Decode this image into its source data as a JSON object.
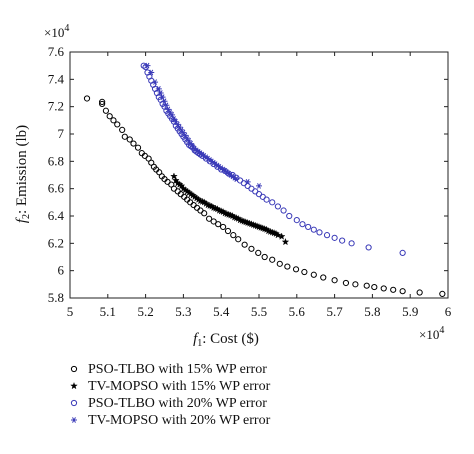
{
  "chart_data": {
    "type": "scatter",
    "xlabel_italic": "f",
    "xlabel_sub": "1",
    "xlabel_rest": ": Cost ($)",
    "ylabel_italic": "f",
    "ylabel_sub": "2",
    "ylabel_rest": ": Emission (lb)",
    "x_multiplier_base": "×10",
    "x_multiplier_exp": "4",
    "y_multiplier_base": "×10",
    "y_multiplier_exp": "4",
    "xlim": [
      5,
      6
    ],
    "ylim": [
      5.8,
      7.6
    ],
    "x_tick_labels": [
      "5",
      "5.1",
      "5.2",
      "5.3",
      "5.4",
      "5.5",
      "5.6",
      "5.7",
      "5.8",
      "5.9",
      "6"
    ],
    "x_ticks": [
      5,
      5.1,
      5.2,
      5.3,
      5.4,
      5.5,
      5.6,
      5.7,
      5.8,
      5.9,
      6
    ],
    "y_tick_labels": [
      "5.8",
      "6",
      "6.2",
      "6.4",
      "6.6",
      "6.8",
      "7",
      "7.2",
      "7.4",
      "7.6"
    ],
    "y_ticks": [
      5.8,
      6.0,
      6.2,
      6.4,
      6.6,
      6.8,
      7.0,
      7.2,
      7.4,
      7.6
    ],
    "grid": false,
    "legend_position": "bottom",
    "series": [
      {
        "name": "PSO-TLBO with 15% WP error",
        "marker": "circle",
        "color": "#000000",
        "x": [
          5.045,
          5.085,
          5.085,
          5.095,
          5.105,
          5.115,
          5.125,
          5.138,
          5.145,
          5.158,
          5.168,
          5.18,
          5.19,
          5.198,
          5.208,
          5.215,
          5.222,
          5.228,
          5.236,
          5.243,
          5.25,
          5.258,
          5.268,
          5.275,
          5.285,
          5.293,
          5.302,
          5.31,
          5.318,
          5.327,
          5.336,
          5.345,
          5.355,
          5.368,
          5.38,
          5.392,
          5.405,
          5.418,
          5.432,
          5.445,
          5.462,
          5.48,
          5.498,
          5.515,
          5.535,
          5.555,
          5.575,
          5.598,
          5.62,
          5.645,
          5.67,
          5.7,
          5.73,
          5.755,
          5.785,
          5.805,
          5.83,
          5.855,
          5.88,
          5.925,
          5.985
        ],
        "y": [
          7.26,
          7.235,
          7.22,
          7.17,
          7.13,
          7.1,
          7.07,
          7.03,
          6.98,
          6.96,
          6.93,
          6.9,
          6.86,
          6.84,
          6.82,
          6.79,
          6.76,
          6.74,
          6.72,
          6.69,
          6.67,
          6.65,
          6.63,
          6.6,
          6.58,
          6.56,
          6.54,
          6.52,
          6.5,
          6.48,
          6.46,
          6.44,
          6.42,
          6.38,
          6.36,
          6.34,
          6.32,
          6.29,
          6.26,
          6.23,
          6.19,
          6.16,
          6.13,
          6.1,
          6.08,
          6.05,
          6.03,
          6.01,
          5.99,
          5.97,
          5.95,
          5.93,
          5.91,
          5.9,
          5.89,
          5.88,
          5.87,
          5.86,
          5.85,
          5.84,
          5.83
        ]
      },
      {
        "name": "TV-MOPSO with 15% WP error",
        "marker": "star",
        "color": "#000000",
        "x": [
          5.275,
          5.28,
          5.285,
          5.29,
          5.295,
          5.3,
          5.305,
          5.31,
          5.315,
          5.32,
          5.325,
          5.33,
          5.335,
          5.34,
          5.345,
          5.35,
          5.355,
          5.36,
          5.365,
          5.37,
          5.375,
          5.38,
          5.385,
          5.39,
          5.395,
          5.4,
          5.405,
          5.41,
          5.415,
          5.42,
          5.425,
          5.43,
          5.435,
          5.44,
          5.445,
          5.45,
          5.455,
          5.46,
          5.465,
          5.47,
          5.475,
          5.48,
          5.485,
          5.49,
          5.495,
          5.5,
          5.505,
          5.51,
          5.515,
          5.52,
          5.525,
          5.53,
          5.535,
          5.54,
          5.545,
          5.55,
          5.56,
          5.57
        ],
        "y": [
          6.69,
          6.66,
          6.64,
          6.63,
          6.62,
          6.6,
          6.59,
          6.58,
          6.57,
          6.56,
          6.55,
          6.54,
          6.53,
          6.52,
          6.51,
          6.505,
          6.5,
          6.49,
          6.48,
          6.475,
          6.47,
          6.46,
          6.455,
          6.45,
          6.44,
          6.435,
          6.43,
          6.42,
          6.415,
          6.41,
          6.405,
          6.4,
          6.39,
          6.385,
          6.38,
          6.37,
          6.365,
          6.36,
          6.355,
          6.35,
          6.345,
          6.34,
          6.335,
          6.33,
          6.325,
          6.32,
          6.315,
          6.31,
          6.305,
          6.3,
          6.29,
          6.285,
          6.28,
          6.275,
          6.27,
          6.26,
          6.25,
          6.21
        ]
      },
      {
        "name": "PSO-TLBO with 20% WP error",
        "marker": "circle",
        "color": "#3a3ab8",
        "x": [
          5.195,
          5.2,
          5.205,
          5.21,
          5.215,
          5.22,
          5.225,
          5.23,
          5.235,
          5.24,
          5.245,
          5.25,
          5.255,
          5.26,
          5.265,
          5.27,
          5.275,
          5.28,
          5.285,
          5.29,
          5.295,
          5.3,
          5.305,
          5.31,
          5.315,
          5.32,
          5.325,
          5.33,
          5.335,
          5.34,
          5.345,
          5.35,
          5.36,
          5.37,
          5.38,
          5.39,
          5.4,
          5.41,
          5.42,
          5.43,
          5.44,
          5.45,
          5.46,
          5.47,
          5.48,
          5.49,
          5.5,
          5.51,
          5.52,
          5.535,
          5.55,
          5.565,
          5.58,
          5.6,
          5.615,
          5.63,
          5.645,
          5.66,
          5.68,
          5.7,
          5.72,
          5.745,
          5.79,
          5.88
        ],
        "y": [
          7.5,
          7.49,
          7.45,
          7.42,
          7.39,
          7.36,
          7.33,
          7.3,
          7.27,
          7.25,
          7.22,
          7.2,
          7.17,
          7.15,
          7.13,
          7.11,
          7.09,
          7.06,
          7.04,
          7.02,
          7.0,
          6.98,
          6.96,
          6.94,
          6.92,
          6.91,
          6.9,
          6.88,
          6.87,
          6.86,
          6.85,
          6.84,
          6.82,
          6.8,
          6.78,
          6.76,
          6.74,
          6.73,
          6.71,
          6.7,
          6.68,
          6.66,
          6.64,
          6.62,
          6.6,
          6.58,
          6.56,
          6.54,
          6.52,
          6.5,
          6.47,
          6.44,
          6.4,
          6.37,
          6.34,
          6.32,
          6.3,
          6.28,
          6.26,
          6.24,
          6.22,
          6.2,
          6.17,
          6.13
        ]
      },
      {
        "name": "TV-MOPSO with 20% WP error",
        "marker": "asterisk",
        "color": "#3a3ab8",
        "x": [
          5.205,
          5.215,
          5.225,
          5.235,
          5.24,
          5.245,
          5.25,
          5.255,
          5.26,
          5.265,
          5.27,
          5.275,
          5.28,
          5.285,
          5.29,
          5.295,
          5.3,
          5.305,
          5.31,
          5.315,
          5.32,
          5.325,
          5.33,
          5.335,
          5.34,
          5.345,
          5.35,
          5.355,
          5.36,
          5.365,
          5.37,
          5.375,
          5.38,
          5.385,
          5.39,
          5.395,
          5.4,
          5.405,
          5.41,
          5.415,
          5.42,
          5.425,
          5.43,
          5.435,
          5.44,
          5.47,
          5.5
        ],
        "y": [
          7.5,
          7.45,
          7.38,
          7.33,
          7.3,
          7.27,
          7.24,
          7.21,
          7.18,
          7.16,
          7.14,
          7.11,
          7.09,
          7.07,
          7.05,
          7.03,
          7.01,
          6.99,
          6.97,
          6.95,
          6.93,
          6.91,
          6.89,
          6.88,
          6.87,
          6.86,
          6.85,
          6.84,
          6.83,
          6.82,
          6.81,
          6.8,
          6.79,
          6.78,
          6.77,
          6.76,
          6.75,
          6.74,
          6.73,
          6.72,
          6.71,
          6.7,
          6.69,
          6.68,
          6.67,
          6.65,
          6.62
        ]
      }
    ]
  }
}
